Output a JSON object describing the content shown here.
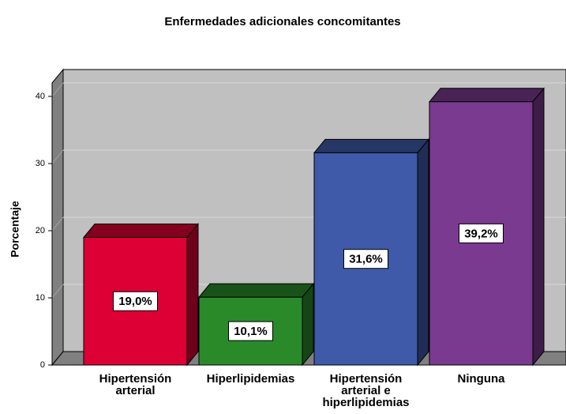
{
  "chart_data": {
    "type": "bar3d",
    "title": "Enfermedades adicionales concomitantes",
    "ylabel": "Porcentaje",
    "categories": [
      "Hipertensión arterial",
      "Hiperlipidemias",
      "Hipertensión arterial e hiperlipidemias",
      "Ninguna"
    ],
    "values": [
      19.0,
      10.1,
      31.6,
      39.2
    ],
    "value_labels": [
      "19,0%",
      "10,1%",
      "31,6%",
      "39,2%"
    ],
    "colors": [
      "#dc0034",
      "#2a8a2a",
      "#3f5aa8",
      "#7a3a90"
    ],
    "ylim": [
      0,
      42
    ],
    "yticks": [
      0,
      10,
      20,
      30,
      40
    ],
    "grid": true
  }
}
